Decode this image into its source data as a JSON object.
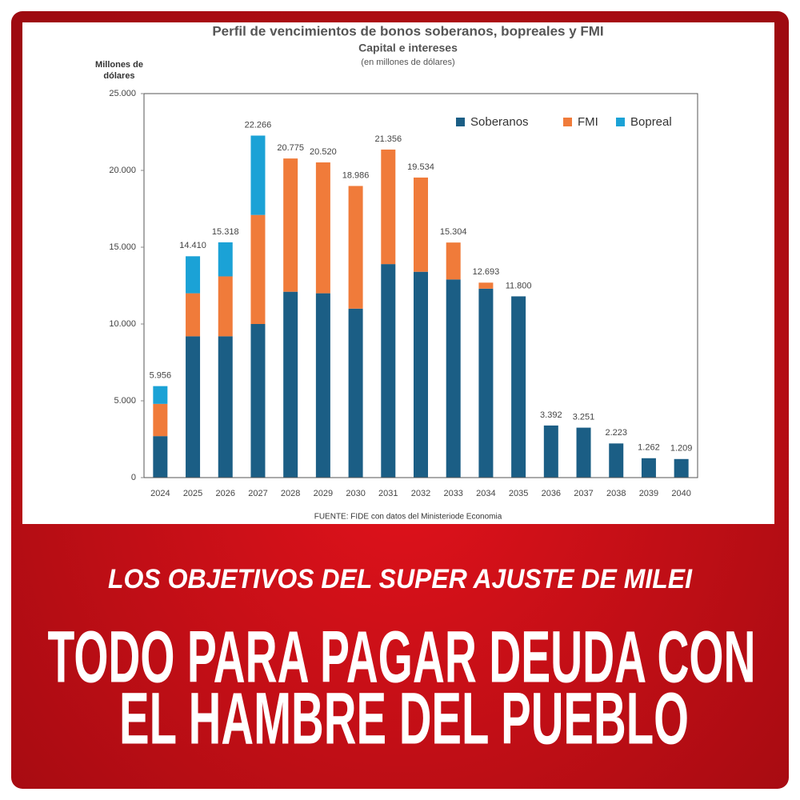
{
  "chart_data": {
    "type": "stacked-bar",
    "title": "Perfil de vencimientos de bonos soberanos, bopreales y FMI",
    "subtitle": "Capital e intereses",
    "unit_note": "(en millones de dólares)",
    "y_label": "Millones de dólares",
    "source": "FUENTE: FIDE con datos del Ministeriode Economia",
    "categories": [
      "2024",
      "2025",
      "2026",
      "2027",
      "2028",
      "2029",
      "2030",
      "2031",
      "2032",
      "2033",
      "2034",
      "2035",
      "2036",
      "2037",
      "2038",
      "2039",
      "2040"
    ],
    "series": [
      {
        "name": "Soberanos",
        "color": "#1b5e85",
        "values": [
          2700,
          9200,
          9200,
          10000,
          12100,
          12000,
          11000,
          13900,
          13400,
          12900,
          12300,
          11800,
          3392,
          3251,
          2223,
          1262,
          1209
        ]
      },
      {
        "name": "FMI",
        "color": "#f07b3a",
        "values": [
          2100,
          2800,
          3900,
          7100,
          8675,
          8520,
          7986,
          7456,
          6134,
          2404,
          393,
          0,
          0,
          0,
          0,
          0,
          0
        ]
      },
      {
        "name": "Bopreal",
        "color": "#1ba2d6",
        "values": [
          1156,
          2410,
          2218,
          5166,
          0,
          0,
          0,
          0,
          0,
          0,
          0,
          0,
          0,
          0,
          0,
          0,
          0
        ]
      }
    ],
    "totals": {
      "values": [
        5956,
        14410,
        15318,
        22266,
        20775,
        20520,
        18986,
        21356,
        19534,
        15304,
        12693,
        11800,
        3392,
        3251,
        2223,
        1262,
        1209
      ],
      "value_labels": [
        "5.956",
        "14.410",
        "15.318",
        "22.266",
        "20.775",
        "20.520",
        "18.986",
        "21.356",
        "19.534",
        "15.304",
        "12.693",
        "11.800",
        "3.392",
        "3.251",
        "2.223",
        "1.262",
        "1.209"
      ]
    },
    "ylim": [
      0,
      25000
    ],
    "yticks": [
      0,
      {
        "value": 5000,
        "label": "5.000"
      },
      {
        "value": 10000,
        "label": "10.000"
      },
      {
        "value": 15000,
        "label": "15.000"
      },
      {
        "value": 20000,
        "label": "20.000"
      },
      {
        "value": 25000,
        "label": "25.000"
      }
    ],
    "grid": false,
    "legend": "top-right"
  },
  "headline": {
    "kicker": "LOS OBJETIVOS DEL SUPER AJUSTE DE MILEI",
    "lines": [
      "TODO PARA PAGAR DEUDA CON",
      "EL HAMBRE DEL PUEBLO"
    ]
  }
}
